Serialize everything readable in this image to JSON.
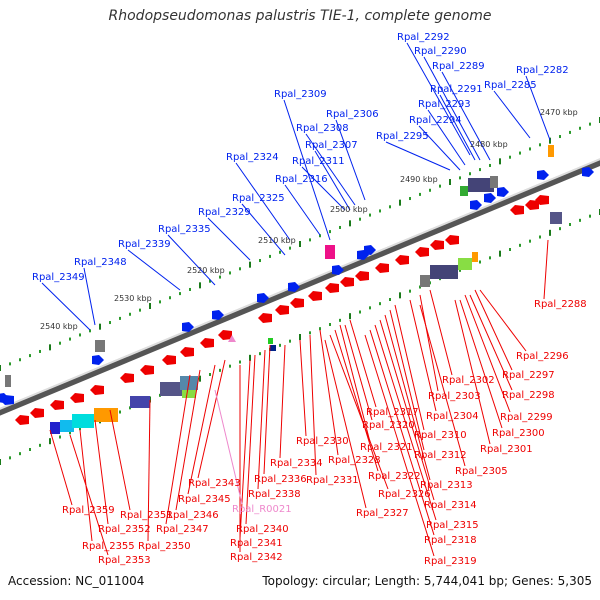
{
  "title": "Rhodopseudomonas palustris TIE-1, complete genome",
  "accession": "Accession: NC_011004",
  "topology": "Topology: circular; Length: 5,744,041 bp; Genes: 5,305",
  "colors": {
    "plus": "#0022ee",
    "minus": "#ee0000",
    "rna": "#ee88cc",
    "backbone": "#888888"
  },
  "kbp_labels": [
    "2470 kbp",
    "2480 kbp",
    "2490 kbp",
    "2500 kbp",
    "2510 kbp",
    "2520 kbp",
    "2530 kbp",
    "2540 kbp"
  ],
  "plus_genes": [
    "Rpal_2292",
    "Rpal_2290",
    "Rpal_2289",
    "Rpal_2282",
    "Rpal_2291",
    "Rpal_2285",
    "Rpal_2309",
    "Rpal_2293",
    "Rpal_2306",
    "Rpal_2294",
    "Rpal_2308",
    "Rpal_2295",
    "Rpal_2307",
    "Rpal_2324",
    "Rpal_2311",
    "Rpal_2316",
    "Rpal_2325",
    "Rpal_2329",
    "Rpal_2335",
    "Rpal_2339",
    "Rpal_2348",
    "Rpal_2349"
  ],
  "minus_genes": [
    "Rpal_2288",
    "Rpal_2296",
    "Rpal_2297",
    "Rpal_2302",
    "Rpal_2298",
    "Rpal_2303",
    "Rpal_2299",
    "Rpal_2317",
    "Rpal_2304",
    "Rpal_2300",
    "Rpal_2320",
    "Rpal_2310",
    "Rpal_2301",
    "Rpal_2330",
    "Rpal_2321",
    "Rpal_2312",
    "Rpal_2328",
    "Rpal_2322",
    "Rpal_2305",
    "Rpal_2334",
    "Rpal_2331",
    "Rpal_2313",
    "Rpal_2336",
    "Rpal_2326",
    "Rpal_2343",
    "Rpal_2338",
    "Rpal_2314",
    "Rpal_2345",
    "Rpal_2327",
    "Rpal_2359",
    "Rpal_2346",
    "Rpal_2315",
    "Rpal_2351",
    "Rpal_2340",
    "Rpal_2352",
    "Rpal_2347",
    "Rpal_2318",
    "Rpal_2341",
    "Rpal_2355",
    "Rpal_2350",
    "Rpal_2342",
    "Rpal_2319",
    "Rpal_2353"
  ],
  "rna_genes": [
    "Rpal_R0021"
  ]
}
